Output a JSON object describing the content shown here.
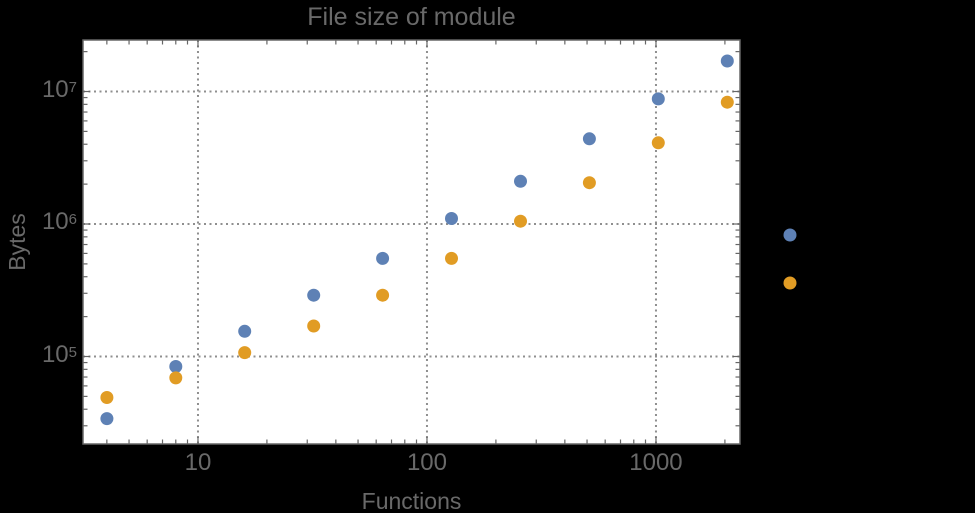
{
  "chart_data": {
    "type": "scatter",
    "title": "File size of module",
    "xlabel": "Functions",
    "ylabel": "Bytes",
    "x_scale": "log",
    "y_scale": "log",
    "xlim": [
      3.147,
      2327.6
    ],
    "ylim": [
      21858,
      24477000
    ],
    "grid": "major-dotted",
    "x_ticks": [
      {
        "value": 10,
        "label": "10"
      },
      {
        "value": 100,
        "label": "100"
      },
      {
        "value": 1000,
        "label": "1000"
      }
    ],
    "y_ticks": [
      {
        "value": 100000,
        "base": "10",
        "exp": "5"
      },
      {
        "value": 1000000,
        "base": "10",
        "exp": "6"
      },
      {
        "value": 10000000,
        "base": "10",
        "exp": "7"
      }
    ],
    "series": [
      {
        "name": "series-blue",
        "color": "#5E81B5",
        "marker": "circle",
        "points": [
          [
            4,
            34000
          ],
          [
            8,
            84000
          ],
          [
            16,
            155000
          ],
          [
            32,
            290000
          ],
          [
            64,
            550000
          ],
          [
            128,
            1100000
          ],
          [
            256,
            2100000
          ],
          [
            512,
            4400000
          ],
          [
            1024,
            8800000
          ],
          [
            2048,
            17000000
          ]
        ]
      },
      {
        "name": "series-orange",
        "color": "#E19C24",
        "marker": "circle",
        "points": [
          [
            4,
            49000
          ],
          [
            8,
            69000
          ],
          [
            16,
            107000
          ],
          [
            32,
            170000
          ],
          [
            64,
            290000
          ],
          [
            128,
            550000
          ],
          [
            256,
            1050000
          ],
          [
            512,
            2050000
          ],
          [
            1024,
            4100000
          ],
          [
            2048,
            8300000
          ]
        ]
      }
    ],
    "legend": {
      "position": "right-outside",
      "items": [
        {
          "label": "",
          "color": "#5E81B5"
        },
        {
          "label": "",
          "color": "#E19C24"
        }
      ]
    },
    "colors": {
      "background": "#000000",
      "plot_background": "#FFFFFF",
      "frame": "#666666",
      "grid": "#8F8F8F",
      "text": "#696969"
    }
  }
}
